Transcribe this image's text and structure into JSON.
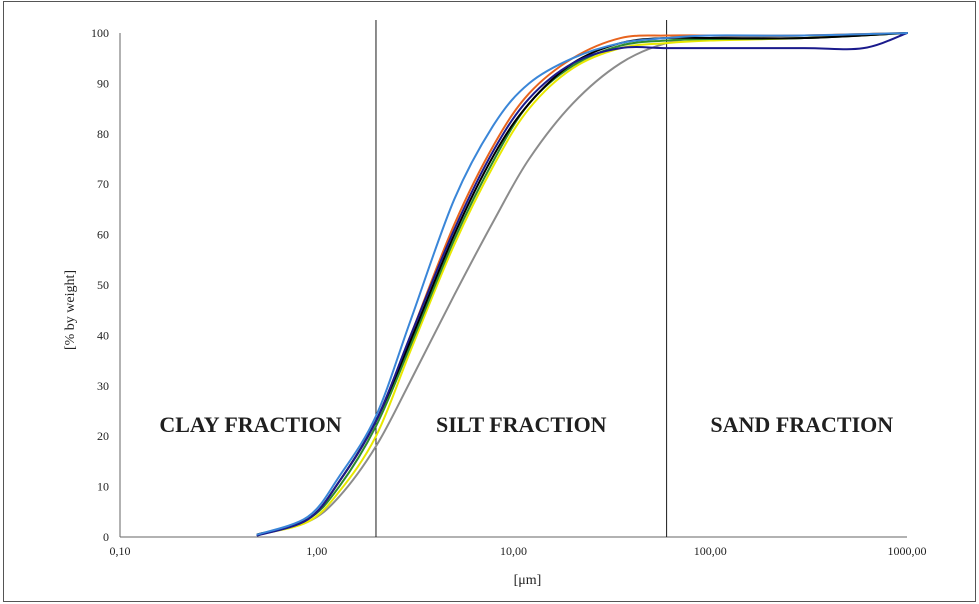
{
  "chart_data": {
    "type": "line",
    "title": "",
    "xlabel": "[μm]",
    "ylabel": "[%  by weight]",
    "xscale": "log",
    "xlim": [
      0.1,
      1000
    ],
    "ylim": [
      0,
      100
    ],
    "x_ticks": [
      0.1,
      1,
      10,
      100,
      1000
    ],
    "x_tick_labels": [
      "0,10",
      "1,00",
      "10,00",
      "100,00",
      "1000,00"
    ],
    "y_ticks": [
      0,
      10,
      20,
      30,
      40,
      50,
      60,
      70,
      80,
      90,
      100
    ],
    "y_tick_labels": [
      "0",
      "10",
      "20",
      "30",
      "40",
      "50",
      "60",
      "70",
      "80",
      "90",
      "100"
    ],
    "grid": false,
    "legend": "none",
    "boundaries": [
      2,
      60
    ],
    "region_labels": [
      "CLAY FRACTION",
      "SILT FRACTION",
      "SAND FRACTION"
    ],
    "series": [
      {
        "color": "#8c8c8c",
        "x": [
          0.5,
          0.9,
          1.3,
          2,
          3,
          5,
          8,
          12,
          20,
          35,
          60,
          100,
          300,
          1000
        ],
        "y": [
          0.5,
          3,
          8,
          18,
          31,
          48,
          63,
          75,
          86,
          94,
          98,
          99,
          99.5,
          100
        ]
      },
      {
        "color": "#e8e800",
        "x": [
          0.5,
          0.9,
          1.3,
          2,
          3,
          5,
          8,
          12,
          20,
          35,
          60,
          100,
          300,
          1000
        ],
        "y": [
          0.5,
          3,
          9,
          20,
          37,
          58,
          74,
          85,
          93,
          97,
          98,
          98.5,
          99,
          100
        ]
      },
      {
        "color": "#2e8b2e",
        "x": [
          0.5,
          0.9,
          1.3,
          2,
          3,
          5,
          8,
          12,
          20,
          35,
          60,
          100,
          300,
          1000
        ],
        "y": [
          0.5,
          3.5,
          10,
          22,
          38,
          59,
          75,
          86,
          93.5,
          97.5,
          98.5,
          98.8,
          99,
          100
        ]
      },
      {
        "color": "#e8641e",
        "x": [
          0.5,
          0.9,
          1.3,
          2,
          3,
          5,
          8,
          12,
          20,
          35,
          60,
          100,
          300,
          1000
        ],
        "y": [
          0.5,
          3.5,
          11,
          23,
          40,
          62,
          78,
          88,
          95,
          99,
          99.5,
          99.5,
          99.5,
          100
        ]
      },
      {
        "color": "#000000",
        "x": [
          0.5,
          0.9,
          1.3,
          2,
          3,
          5,
          8,
          12,
          20,
          35,
          60,
          100,
          300,
          1000
        ],
        "y": [
          0.5,
          3.5,
          11,
          23,
          39,
          60,
          76,
          86,
          94,
          98,
          99,
          99,
          99,
          100
        ]
      },
      {
        "color": "#1a1a8c",
        "x": [
          0.5,
          0.9,
          1.3,
          2,
          3,
          5,
          8,
          12,
          20,
          35,
          60,
          100,
          300,
          600,
          1000
        ],
        "y": [
          0.3,
          3.5,
          11,
          23,
          40,
          61,
          77,
          87,
          94,
          97,
          97,
          97,
          97,
          97,
          100
        ]
      },
      {
        "color": "#3a86d8",
        "x": [
          0.5,
          0.9,
          1.3,
          2,
          3,
          5,
          8,
          12,
          20,
          35,
          60,
          100,
          300,
          1000
        ],
        "y": [
          0.5,
          4,
          12,
          24,
          43,
          67,
          82,
          90,
          95,
          98,
          99,
          99.5,
          99.5,
          100
        ]
      }
    ]
  }
}
